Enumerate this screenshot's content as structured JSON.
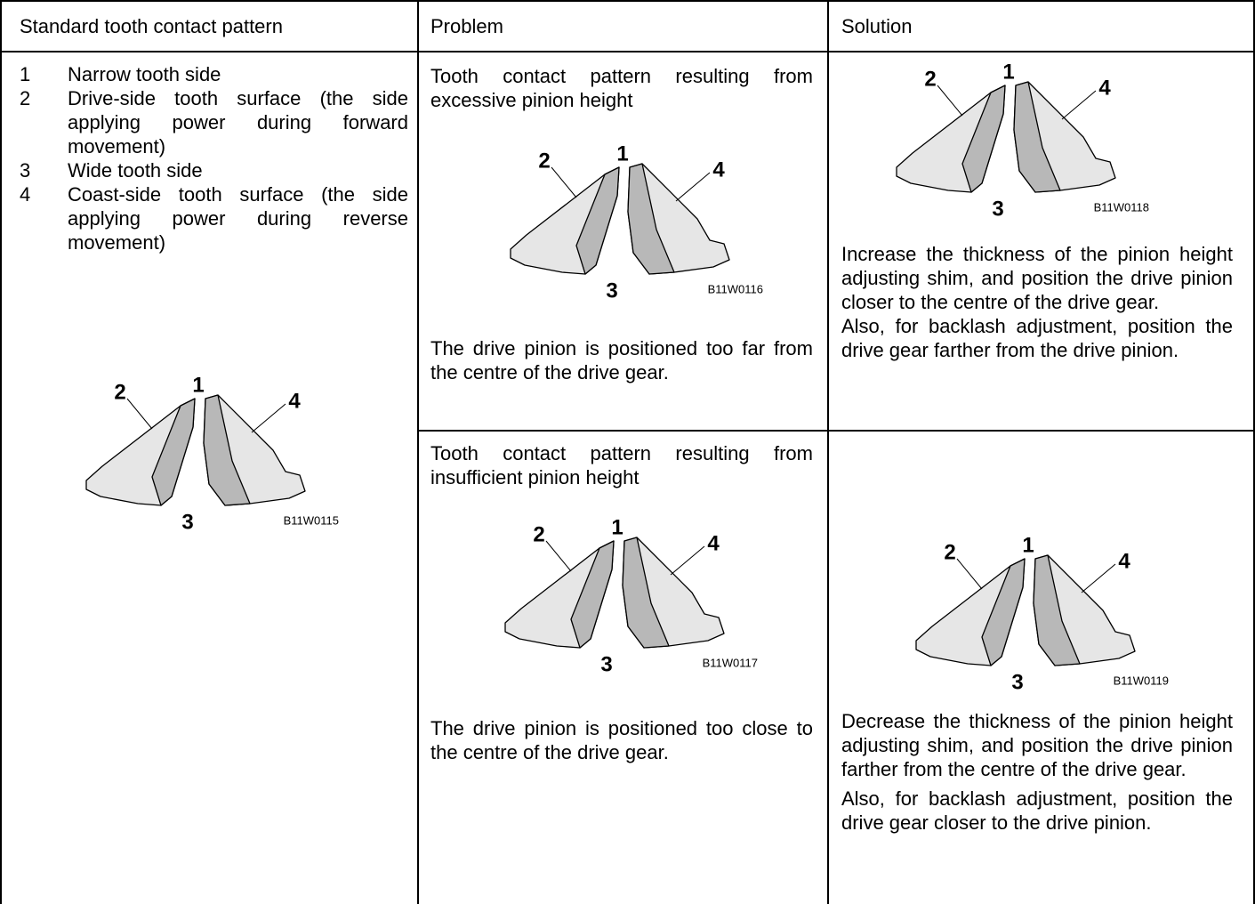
{
  "header": {
    "columns": [
      "Standard tooth contact pattern",
      "Problem",
      "Solution"
    ]
  },
  "standard": {
    "items": [
      {
        "number": "1",
        "text": "Narrow tooth side"
      },
      {
        "number": "2",
        "text": "Drive-side tooth surface (the side applying power during forward movement)"
      },
      {
        "number": "3",
        "text": "Wide tooth side"
      },
      {
        "number": "4",
        "text": "Coast-side tooth surface (the side applying power during reverse movement)"
      }
    ],
    "figure": {
      "labels": [
        "2",
        "1",
        "4",
        "3"
      ],
      "code": "B11W0115"
    }
  },
  "rows": [
    {
      "problem": {
        "title": "Tooth contact pattern resulting from excessive pinion height",
        "figure": {
          "labels": [
            "2",
            "1",
            "4",
            "3"
          ],
          "code": "B11W0116"
        },
        "text": "The drive pinion is positioned too far from the centre of the drive gear."
      },
      "solution": {
        "figure": {
          "labels": [
            "2",
            "1",
            "4",
            "3"
          ],
          "code": "B11W0118"
        },
        "paragraphs": [
          "Increase the thickness of the pinion height adjusting shim, and position the drive pinion closer to the centre of the drive gear.",
          "Also, for backlash adjustment, position the drive gear farther from the drive pinion."
        ]
      }
    },
    {
      "problem": {
        "title": "Tooth contact pattern resulting from insufficient pinion height",
        "figure": {
          "labels": [
            "2",
            "1",
            "4",
            "3"
          ],
          "code": "B11W0117"
        },
        "text": "The drive pinion is positioned too close to the centre of the drive gear."
      },
      "solution": {
        "figure": {
          "labels": [
            "2",
            "1",
            "4",
            "3"
          ],
          "code": "B11W0119"
        },
        "paragraphs": [
          "Decrease the thickness of the pinion height adjusting shim, and position the drive pinion farther from the centre of the drive gear.",
          "Also, for backlash adjustment, position the drive gear closer to the drive pinion."
        ]
      }
    }
  ]
}
